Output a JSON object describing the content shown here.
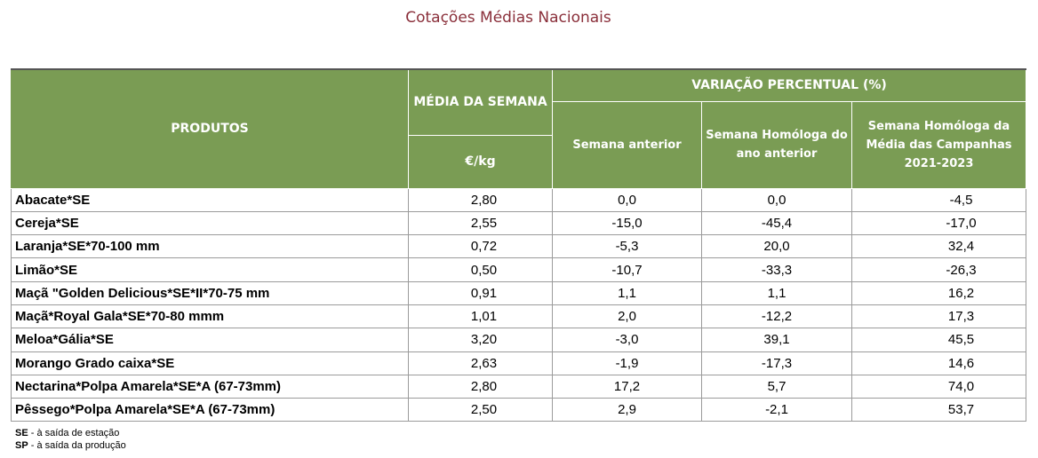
{
  "title": "Cotações Médias Nacionais",
  "headers": {
    "produtos": "PRODUTOS",
    "media_semana": "MÉDIA DA SEMANA",
    "unit": "€/kg",
    "variacao": "VARIAÇÃO PERCENTUAL (%)",
    "semana_anterior": "Semana anterior",
    "semana_homologa": "Semana Homóloga do ano anterior",
    "semana_homologa_media": "Semana Homóloga da Média das Campanhas 2021-2023"
  },
  "rows": [
    {
      "produto": "Abacate*SE",
      "media": "2,80",
      "v1": "0,0",
      "v2": "0,0",
      "v3": "-4,5"
    },
    {
      "produto": "Cereja*SE",
      "media": "2,55",
      "v1": "-15,0",
      "v2": "-45,4",
      "v3": "-17,0"
    },
    {
      "produto": "Laranja*SE*70-100 mm",
      "media": "0,72",
      "v1": "-5,3",
      "v2": "20,0",
      "v3": "32,4"
    },
    {
      "produto": "Limão*SE",
      "media": "0,50",
      "v1": "-10,7",
      "v2": "-33,3",
      "v3": "-26,3"
    },
    {
      "produto": "Maçã \"Golden Delicious*SE*II*70-75 mm",
      "media": "0,91",
      "v1": "1,1",
      "v2": "1,1",
      "v3": "16,2"
    },
    {
      "produto": "Maçã*Royal Gala*SE*70-80 mmm",
      "media": "1,01",
      "v1": "2,0",
      "v2": "-12,2",
      "v3": "17,3"
    },
    {
      "produto": "Meloa*Gália*SE",
      "media": "3,20",
      "v1": "-3,0",
      "v2": "39,1",
      "v3": "45,5"
    },
    {
      "produto": "Morango Grado caixa*SE",
      "media": "2,63",
      "v1": "-1,9",
      "v2": "-17,3",
      "v3": "14,6"
    },
    {
      "produto": "Nectarina*Polpa Amarela*SE*A (67-73mm)",
      "media": "2,80",
      "v1": "17,2",
      "v2": "5,7",
      "v3": "74,0"
    },
    {
      "produto": "Pêssego*Polpa Amarela*SE*A (67-73mm)",
      "media": "2,50",
      "v1": "2,9",
      "v2": "-2,1",
      "v3": "53,7"
    }
  ],
  "footnotes": {
    "se_abbr": "SE",
    "se_text": " - à saída de estação",
    "sp_abbr": "SP",
    "sp_text": " - à saída da produção"
  },
  "colors": {
    "header_bg": "#7a9c54",
    "title": "#8a2f3a"
  }
}
